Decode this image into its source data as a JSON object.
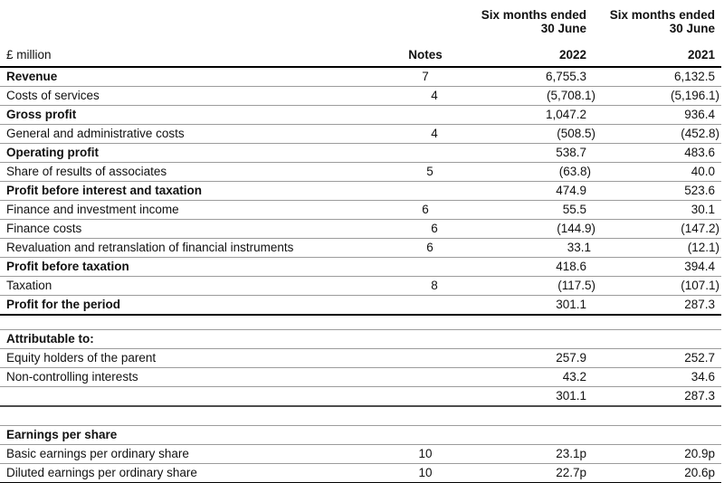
{
  "document": {
    "type": "condensed-consolidated-income-statement"
  },
  "colors": {
    "background": "#ffffff",
    "text": "#111111",
    "rule_thin": "#9c9c9c",
    "rule_medium": "#4d4d4d",
    "rule_heavy": "#000000"
  },
  "table": {
    "unit_label": "£ million",
    "columns": {
      "notes": {
        "header": "Notes"
      },
      "y2022": {
        "period": "Six months ended",
        "date": "30 June",
        "year": "2022"
      },
      "y2021": {
        "period": "Six months ended",
        "date": "30 June",
        "year": "2021"
      }
    },
    "rows": [
      {
        "label": "Revenue",
        "bold": true,
        "note": "7",
        "y2022": "6,755.3",
        "y2021": "6,132.5",
        "border": "thin"
      },
      {
        "label": "Costs of services",
        "bold": false,
        "note": "4",
        "y2022": "(5,708.1)",
        "y2021": "(5,196.1)",
        "border": "thin"
      },
      {
        "label": "Gross profit",
        "bold": true,
        "note": "",
        "y2022": "1,047.2",
        "y2021": "936.4",
        "border": "thin"
      },
      {
        "label": "General and administrative costs",
        "bold": false,
        "note": "4",
        "y2022": "(508.5)",
        "y2021": "(452.8)",
        "border": "thin"
      },
      {
        "label": "Operating profit",
        "bold": true,
        "note": "",
        "y2022": "538.7",
        "y2021": "483.6",
        "border": "thin"
      },
      {
        "label": "Share of results of associates",
        "bold": false,
        "note": "5",
        "y2022": "(63.8)",
        "y2021": "40.0",
        "border": "thin"
      },
      {
        "label": "Profit before interest and taxation",
        "bold": true,
        "note": "",
        "y2022": "474.9",
        "y2021": "523.6",
        "border": "thin"
      },
      {
        "label": "Finance and investment income",
        "bold": false,
        "note": "6",
        "y2022": "55.5",
        "y2021": "30.1",
        "border": "thin"
      },
      {
        "label": "Finance costs",
        "bold": false,
        "note": "6",
        "y2022": "(144.9)",
        "y2021": "(147.2)",
        "border": "thin"
      },
      {
        "label": "Revaluation and retranslation of financial instruments",
        "bold": false,
        "note": "6",
        "y2022": "33.1",
        "y2021": "(12.1)",
        "border": "thin"
      },
      {
        "label": "Profit before taxation",
        "bold": true,
        "note": "",
        "y2022": "418.6",
        "y2021": "394.4",
        "border": "thin"
      },
      {
        "label": "Taxation",
        "bold": false,
        "note": "8",
        "y2022": "(117.5)",
        "y2021": "(107.1)",
        "border": "thin"
      },
      {
        "label": "Profit for the period",
        "bold": true,
        "note": "",
        "y2022": "301.1",
        "y2021": "287.3",
        "border": "thick"
      },
      {
        "type": "spacer",
        "height": 15,
        "border": "thin"
      },
      {
        "label": "Attributable to:",
        "bold": true,
        "note": "",
        "y2022": "",
        "y2021": "",
        "border": "thin"
      },
      {
        "label": "Equity holders of the parent",
        "bold": false,
        "note": "",
        "y2022": "257.9",
        "y2021": "252.7",
        "border": "thin"
      },
      {
        "label": "Non-controlling interests",
        "bold": false,
        "note": "",
        "y2022": "43.2",
        "y2021": "34.6",
        "border": "thin"
      },
      {
        "label": "",
        "bold": false,
        "note": "",
        "y2022": "301.1",
        "y2021": "287.3",
        "border": "medium"
      },
      {
        "type": "spacer",
        "height": 20,
        "border": "thin"
      },
      {
        "label": "Earnings per share",
        "bold": true,
        "note": "",
        "y2022": "",
        "y2021": "",
        "border": "thin"
      },
      {
        "label": "Basic earnings per ordinary share",
        "bold": false,
        "note": "10",
        "y2022": "23.1p",
        "y2021": "20.9p",
        "border": "thin"
      },
      {
        "label": "Diluted earnings per ordinary share",
        "bold": false,
        "note": "10",
        "y2022": "22.7p",
        "y2021": "20.6p",
        "border": "thick"
      }
    ]
  }
}
